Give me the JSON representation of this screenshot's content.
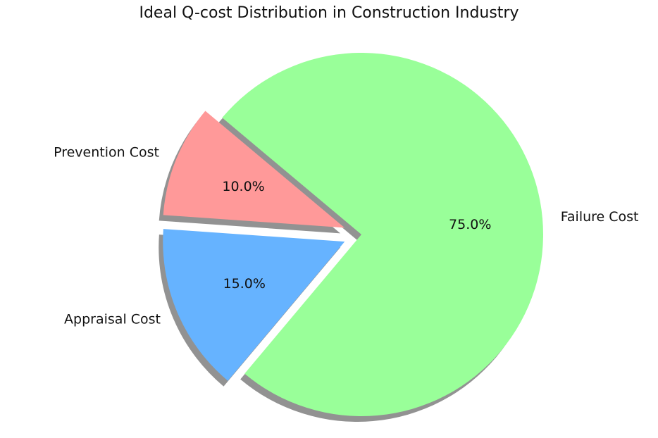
{
  "chart_data": {
    "type": "pie",
    "title": "Ideal Q-cost Distribution in Construction Industry",
    "categories": [
      "Prevention Cost",
      "Appraisal Cost",
      "Failure Cost"
    ],
    "values": [
      10.0,
      15.0,
      75.0
    ],
    "percent_labels": [
      "10.0%",
      "15.0%",
      "75.0%"
    ],
    "colors": [
      "#ff9999",
      "#66b3ff",
      "#99ff99"
    ],
    "explode": [
      0.1,
      0.1,
      0
    ],
    "start_angle_deg": 140,
    "shadow": true
  }
}
